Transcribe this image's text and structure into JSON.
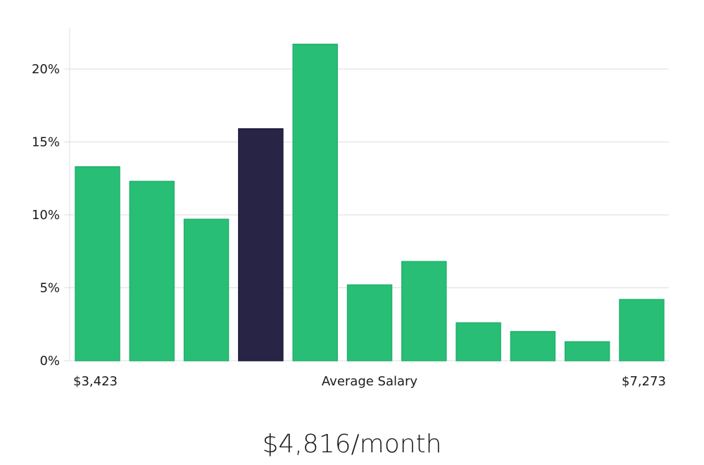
{
  "chart_data": {
    "type": "bar",
    "values": [
      13.3,
      12.3,
      9.7,
      15.9,
      21.7,
      5.2,
      6.8,
      2.6,
      2.0,
      1.3,
      4.2
    ],
    "highlight_index": 3,
    "bar_color": "#29be76",
    "highlight_color": "#272446",
    "ylim": [
      0,
      22.8
    ],
    "y_ticks": [
      {
        "value": 0,
        "label": "0%"
      },
      {
        "value": 5,
        "label": "5%"
      },
      {
        "value": 10,
        "label": "10%"
      },
      {
        "value": 15,
        "label": "15%"
      },
      {
        "value": 20,
        "label": "20%"
      }
    ],
    "x_min_label": "$3,423",
    "x_center_label": "Average Salary",
    "x_max_label": "$7,273",
    "grid": true
  },
  "headline": "$4,816/month"
}
